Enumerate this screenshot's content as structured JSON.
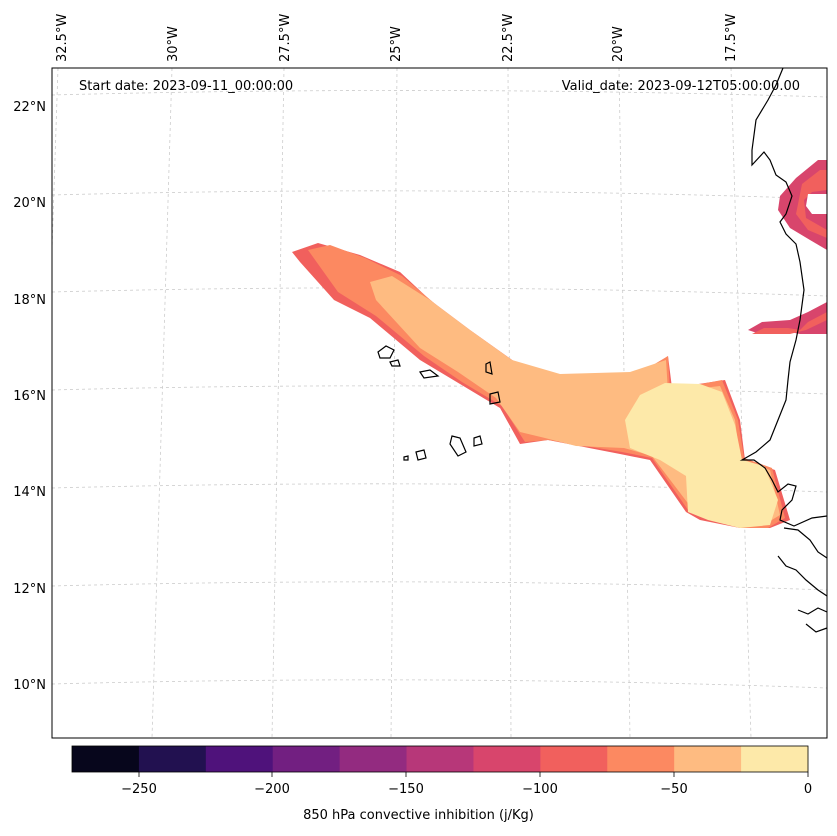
{
  "map": {
    "start_label": "Start date: 2023-09-11_00:00:00",
    "valid_label": "Valid_date: 2023-09-12T05:00:00.00",
    "lon_labels": [
      "32.5°W",
      "30°W",
      "27.5°W",
      "25°W",
      "22.5°W",
      "20°W",
      "17.5°W"
    ],
    "lat_labels": [
      "22°N",
      "20°N",
      "18°N",
      "16°N",
      "14°N",
      "12°N",
      "10°N"
    ]
  },
  "colorbar": {
    "title": "850 hPa convective inhibition (j/Kg)",
    "tick_labels": [
      "−250",
      "−200",
      "−150",
      "−100",
      "−50",
      "0"
    ],
    "levels": [
      -275,
      -250,
      -225,
      -200,
      -175,
      -150,
      -125,
      -100,
      -75,
      -50,
      -25,
      0
    ],
    "colors": [
      "#07061c",
      "#221150",
      "#4f127b",
      "#721f81",
      "#932b80",
      "#b73779",
      "#d8456c",
      "#f1605d",
      "#fc8961",
      "#febb81",
      "#fde9a9"
    ]
  }
}
